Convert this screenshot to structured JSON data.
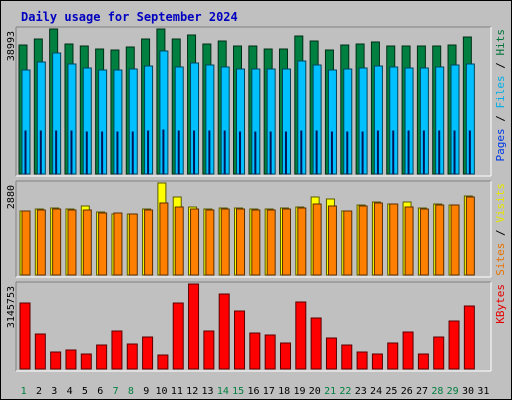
{
  "chart_data": {
    "title": "Daily usage for September 2024",
    "type": "bar",
    "days": [
      "1",
      "2",
      "3",
      "4",
      "5",
      "6",
      "7",
      "8",
      "9",
      "10",
      "11",
      "12",
      "13",
      "14",
      "15",
      "16",
      "17",
      "18",
      "19",
      "20",
      "21",
      "22",
      "23",
      "24",
      "25",
      "26",
      "27",
      "28",
      "29",
      "30",
      "31"
    ],
    "weekend_days": [
      1,
      7,
      8,
      14,
      15,
      21,
      22,
      28,
      29
    ],
    "panels": [
      {
        "id": "hits",
        "scale_label": "38993",
        "ymax": 38993,
        "right_label": [
          "Pages",
          "Files",
          "Hits"
        ],
        "series": [
          {
            "name": "Hits",
            "color": "#008040",
            "values": [
              34800,
              36300,
              38993,
              35000,
              34300,
              33700,
              33300,
              34200,
              36300,
              38993,
              36300,
              37300,
              35000,
              35900,
              34300,
              34300,
              33700,
              33700,
              37000,
              35900,
              33300,
              34800,
              35000,
              35600,
              34300,
              34300,
              34300,
              34300,
              34700,
              36800,
              0
            ]
          },
          {
            "name": "Files",
            "color": "#00c0ff",
            "values": [
              27900,
              30000,
              32600,
              29700,
              28500,
              27900,
              27900,
              28200,
              29100,
              33100,
              28800,
              29800,
              29400,
              28800,
              28200,
              28200,
              28200,
              28200,
              30400,
              29400,
              27900,
              28200,
              28500,
              29100,
              28800,
              28500,
              28500,
              28800,
              29400,
              29700,
              0
            ]
          },
          {
            "name": "Pages",
            "color": "#0040ff",
            "values": [
              11500,
              11500,
              11500,
              11500,
              11200,
              11200,
              11200,
              11200,
              11500,
              11900,
              11500,
              11500,
              11500,
              11500,
              11200,
              11200,
              11200,
              11200,
              11500,
              11500,
              11200,
              11200,
              11200,
              11500,
              11500,
              11500,
              11500,
              11500,
              11500,
              11500,
              0
            ]
          }
        ]
      },
      {
        "id": "visits",
        "scale_label": "2880",
        "ymax": 2880,
        "right_label": [
          "Sites",
          "Visits"
        ],
        "series": [
          {
            "name": "Visits",
            "color": "#ffff00",
            "values": [
              2000,
              2070,
              2110,
              2070,
              2170,
              1970,
              1920,
              1920,
              2070,
              2880,
              2430,
              2140,
              2070,
              2110,
              2110,
              2070,
              2070,
              2110,
              2140,
              2440,
              2390,
              2000,
              2200,
              2270,
              2220,
              2270,
              2110,
              2220,
              2200,
              2480,
              0
            ]
          },
          {
            "name": "Sites",
            "color": "#ff8000",
            "values": [
              1990,
              2050,
              2080,
              2050,
              2050,
              1950,
              1930,
              1910,
              2050,
              2250,
              2140,
              2080,
              2050,
              2080,
              2080,
              2050,
              2050,
              2080,
              2110,
              2230,
              2170,
              1990,
              2170,
              2250,
              2230,
              2140,
              2080,
              2200,
              2200,
              2450,
              0
            ]
          }
        ]
      },
      {
        "id": "kbytes",
        "scale_label": "3145753",
        "ymax": 3145753,
        "right_label": [
          "KBytes"
        ],
        "series": [
          {
            "name": "KBytes",
            "color": "#ff0000",
            "values": [
              2440000,
              1300000,
              620000,
              720000,
              550000,
              900000,
              1420000,
              920000,
              1170000,
              500000,
              2440000,
              3145753,
              1410000,
              2770000,
              2150000,
              1320000,
              1270000,
              980000,
              2470000,
              1880000,
              1160000,
              880000,
              620000,
              540000,
              960000,
              1360000,
              540000,
              1200000,
              1790000,
              2320000,
              0
            ]
          }
        ]
      }
    ]
  }
}
